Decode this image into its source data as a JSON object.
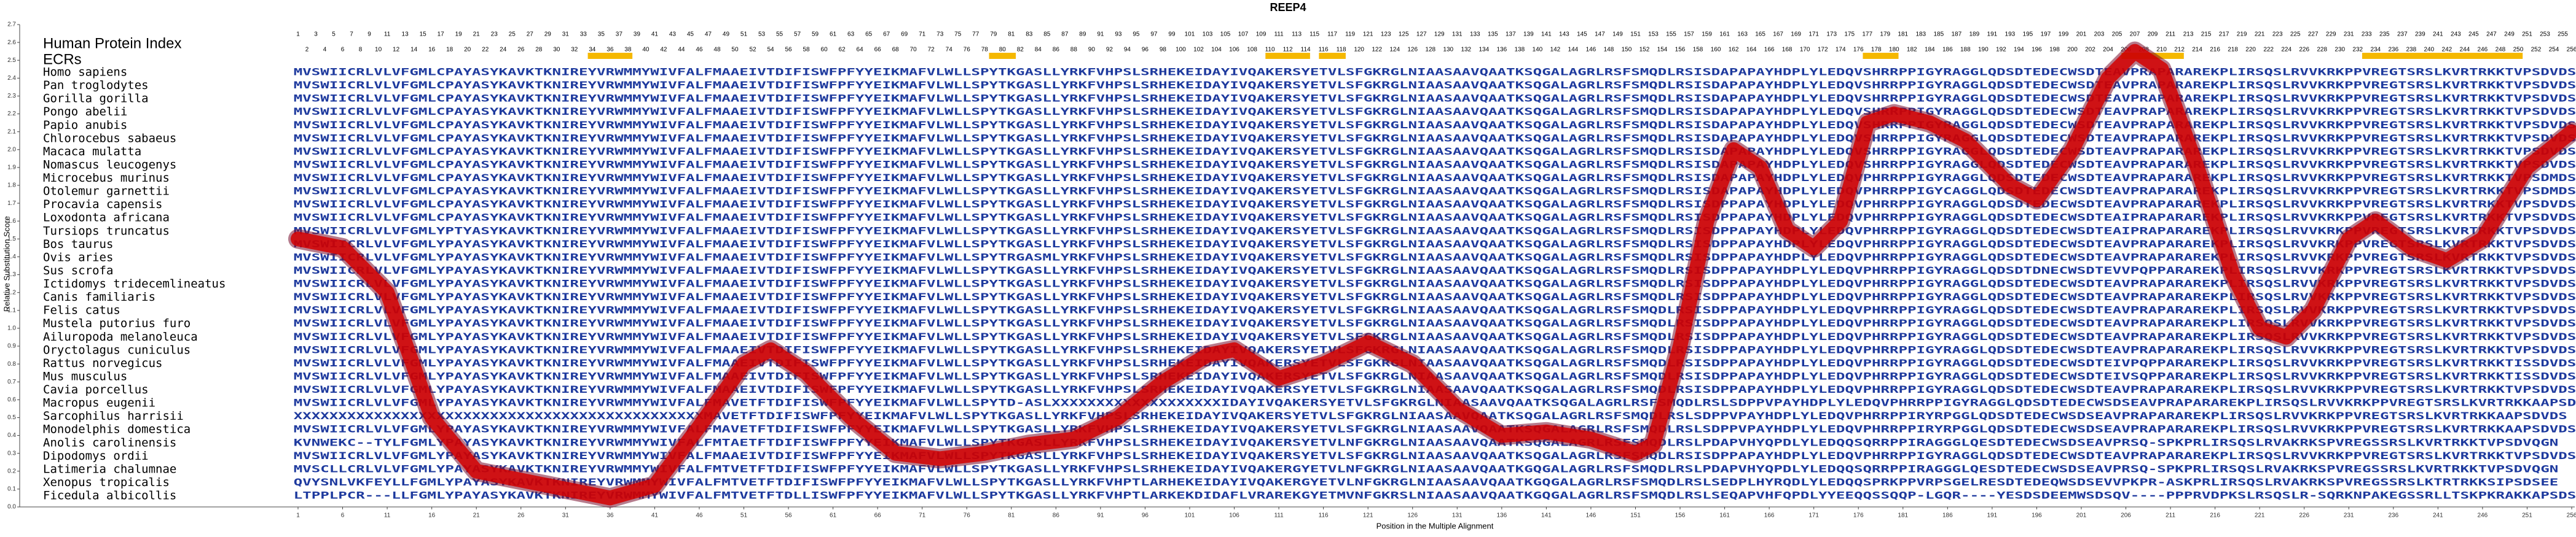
{
  "chart_data": {
    "type": "line",
    "title": "REEP4",
    "x_label": "Position in the Multiple Alignment",
    "y_label": "Relative Substitution Score",
    "xlim": [
      1,
      256
    ],
    "ylim": [
      0,
      2.7
    ],
    "xticks": [
      1,
      6,
      11,
      16,
      21,
      26,
      31,
      36,
      41,
      46,
      51,
      56,
      61,
      66,
      71,
      76,
      81,
      86,
      91,
      96,
      101,
      106,
      111,
      116,
      121,
      126,
      131,
      136,
      141,
      146,
      151,
      156,
      161,
      166,
      171,
      176,
      181,
      186,
      191,
      196,
      201,
      206,
      211,
      216,
      221,
      226,
      231,
      236,
      241,
      246,
      251,
      256
    ],
    "yticks": [
      {
        "value": 0,
        "label": "0.0"
      },
      {
        "value": 0.1,
        "label": "0.1"
      },
      {
        "value": 0.2,
        "label": "0.2"
      },
      {
        "value": 0.3,
        "label": "0.3"
      },
      {
        "value": 0.4,
        "label": "0.4"
      },
      {
        "value": 0.5,
        "label": "0.5"
      },
      {
        "value": 0.6,
        "label": "0.6"
      },
      {
        "value": 0.7,
        "label": "0.7"
      },
      {
        "value": 0.8,
        "label": "0.8"
      },
      {
        "value": 0.9,
        "label": "0.9"
      },
      {
        "value": 1,
        "label": "1.0"
      },
      {
        "value": 1.1,
        "label": "1.1"
      },
      {
        "value": 1.2,
        "label": "1.2"
      },
      {
        "value": 1.3,
        "label": "1.3"
      },
      {
        "value": 1.4,
        "label": "1.4"
      },
      {
        "value": 1.5,
        "label": "1.5"
      },
      {
        "value": 1.6,
        "label": "1.6"
      },
      {
        "value": 1.7,
        "label": "1.7"
      },
      {
        "value": 1.8,
        "label": "1.8"
      },
      {
        "value": 1.9,
        "label": "1.9"
      },
      {
        "value": 2,
        "label": "2.0"
      },
      {
        "value": 2.1,
        "label": "2.1"
      },
      {
        "value": 2.2,
        "label": "2.2"
      },
      {
        "value": 2.3,
        "label": "2.3"
      },
      {
        "value": 2.4,
        "label": "2.4"
      },
      {
        "value": 2.5,
        "label": "2.5"
      },
      {
        "value": 2.6,
        "label": "2.6"
      },
      {
        "value": 2.7,
        "label": "2.7"
      }
    ],
    "color": "#d40000",
    "x": [
      1,
      6,
      11,
      16,
      21,
      26,
      31,
      36,
      41,
      46,
      51,
      54,
      58,
      63,
      68,
      73,
      78,
      83,
      88,
      93,
      98,
      103,
      106,
      111,
      116,
      121,
      126,
      131,
      136,
      141,
      146,
      151,
      153,
      156,
      159,
      162,
      165,
      168,
      171,
      174,
      177,
      180,
      184,
      188,
      193,
      196,
      200,
      204,
      207,
      210,
      214,
      218,
      221,
      224,
      227,
      231,
      234,
      238,
      242,
      246,
      251,
      256
    ],
    "values": [
      1.5,
      1.45,
      1.2,
      0.5,
      0.2,
      0.15,
      0.1,
      0.05,
      0.12,
      0.45,
      0.8,
      0.88,
      0.75,
      0.5,
      0.3,
      0.27,
      0.3,
      0.35,
      0.38,
      0.5,
      0.7,
      0.85,
      0.88,
      0.72,
      0.8,
      0.92,
      0.8,
      0.55,
      0.4,
      0.42,
      0.38,
      0.3,
      0.35,
      0.9,
      1.6,
      2.0,
      1.9,
      1.55,
      1.45,
      1.6,
      2.15,
      2.2,
      2.15,
      2.05,
      1.8,
      1.72,
      2.0,
      2.4,
      2.55,
      2.45,
      1.9,
      1.3,
      1.0,
      0.95,
      1.1,
      1.5,
      1.6,
      1.45,
      1.38,
      1.5,
      1.9,
      2.1
    ]
  },
  "alignment": {
    "index_label": "Human Protein Index",
    "ecr_label": "ECRs",
    "positions": [
      1,
      2,
      3,
      4,
      5,
      6,
      7,
      8,
      9,
      10,
      11,
      12,
      13,
      14,
      15,
      16,
      17,
      18,
      19,
      20,
      21,
      22,
      23,
      24,
      25,
      26,
      27,
      28,
      29,
      30,
      31,
      32,
      33,
      34,
      35,
      36,
      37,
      38,
      39,
      40,
      41,
      42,
      43,
      44,
      45,
      46,
      47,
      48,
      49,
      50,
      51,
      52,
      53,
      54,
      55,
      56,
      57,
      58,
      59,
      60,
      61,
      62,
      63,
      64,
      65,
      66,
      67,
      68,
      69,
      70,
      71,
      72,
      73,
      74,
      75,
      76,
      77,
      78,
      79,
      80,
      81,
      82,
      83,
      84,
      85,
      86,
      87,
      88,
      89,
      90,
      91,
      92,
      93,
      94,
      95,
      96,
      97,
      98,
      99,
      100,
      101,
      102,
      103,
      104,
      105,
      106,
      107,
      108,
      109,
      110,
      111,
      112,
      113,
      114,
      115,
      116,
      117,
      118,
      119,
      120,
      121,
      122,
      123,
      124,
      125,
      126,
      127,
      128,
      129,
      130,
      131,
      132,
      133,
      134,
      135,
      136,
      137,
      138,
      139,
      140,
      141,
      142,
      143,
      144,
      145,
      146,
      147,
      148,
      149,
      150,
      151,
      152,
      153,
      154,
      155,
      156,
      157,
      158,
      159,
      160,
      161,
      162,
      163,
      164,
      165,
      166,
      167,
      168,
      169,
      170,
      171,
      172,
      173,
      174,
      175,
      176,
      177,
      178,
      179,
      180,
      181,
      182,
      183,
      184,
      185,
      186,
      187,
      188,
      189,
      190,
      191,
      192,
      193,
      194,
      195,
      196,
      197,
      198,
      199,
      200,
      201,
      202,
      203,
      204,
      205,
      206,
      207,
      208,
      209,
      210,
      211,
      212,
      213,
      214,
      215,
      216,
      217,
      218,
      219,
      220,
      221,
      222,
      223,
      224,
      225,
      226,
      227,
      228,
      229,
      230,
      231,
      232,
      233,
      234,
      235,
      236,
      237,
      238,
      239,
      240,
      241,
      242,
      243,
      244,
      245,
      246,
      247,
      248,
      249,
      250,
      251,
      252,
      253,
      254,
      255,
      256
    ],
    "ecr_ranges": [
      [
        34,
        38
      ],
      [
        79,
        81
      ],
      [
        110,
        114
      ],
      [
        116,
        118
      ],
      [
        177,
        180
      ],
      [
        206,
        212
      ],
      [
        233,
        250
      ]
    ],
    "species": [
      {
        "name": "Homo sapiens",
        "sequence": "MVSWIICRLVLVFGMLCPAYASYKAVKTKNIREYVRWMMYWIVFALFMAAEIVTDIFISWFPFYYEIKMAFVLWLLSPYTKGASLLYRKFVHPSLSRHEKEIDAYIVQAKERSYETVLSFGKRGLNIAASAAVQAATKSQGALAGRLRSFSMQDLRSISDAPAPAYHDPLYLEDQVSHRRPPIGYRAGGLQDSDTEDECWSDTEAVPRAPARAREKPLIRSQSLRVVKRKPPVREGTSRSLKVRTRKKTVPSDVDS"
      },
      {
        "name": "Pan troglodytes",
        "sequence": "MVSWIICRLVLVFGMLCPAYASYKAVKTKNIREYVRWMMYWIVFALFMAAEIVTDIFISWFPFYYEIKMAFVLWLLSPYTKGASLLYRKFVHPSLSRHEKEIDAYIVQAKERSYETVLSFGKRGLNIAASAAVQAATKSQGALAGRLRSFSMQDLRSISDAPAPAYHDPLYLEDQVSHRRPPIGYRAGGLQDSDTEDECWSDTEAVPRAPARAREKPLIRSQSLRVVKRKPPVREGTSRSLKVRTRKKTVPSDVDS"
      },
      {
        "name": "Gorilla gorilla",
        "sequence": "MVSWIICRLVLVFGMLCPAYASYKAVKTKNIREYVRWMMYWIVFALFMAAEIVTDIFISWFPFYYEIKMAFVLWLLSPYTKGASLLYRKFVHPSLSRHEKEIDAYIVQAKERSYETVLSFGKRGLNIAASAAVQAATKSQGALAGRLRSFSMQDLRSISDAPAPAYHDPLYLEDQVSHRRPPIGYRAGGLQDSDTEDECWSDTEAVPRAPARAREKPLIRSQSLRVVKRKPPVREGTSRSLKVRTRKKTVPSDVDS"
      },
      {
        "name": "Pongo abelii",
        "sequence": "MVSWIICRLVLVFGMLCPAYASYKAVKTKNIREYVRWMMYWIVFALFMAAEIVTDIFISWFPFYYEIKMAFVLWLLSPYTKGASLLYRKFVHPSLSRHEKEIDAYIVQAKERSYETVLSFGKRGLNIAASAAVQAATKSQGALAGRLRSFSMQDLRSISDAPAPAYHDPLYLEDQVSHRRPPIGYRAGGLQDSDTEDECWSDTEAVPRAPARAREKPLIRSQSLRVVKRKPPVREGTSRSLKVRTRKKTVPSDVDS"
      },
      {
        "name": "Papio anubis",
        "sequence": "MVSWIICRLVLVFGMLCPAYASYKAVKTKNIREYVRWMMYWIVFALFMAAEIVTDIFISWFPFYYEIKMAFVLWLLSPYTKGASLLYRKFVHPSLSRHEKEIDAYIVQAKERSYETVLSFGKRGLNIAASAAVQAATKSQGALAGRLRSFSMQDLRSISDAPAPAYHDPLYLEDQVSHRRPPIGYRAGGLQDSDTEDECWSDTEAVPRAPARAREKPLIRSQSLRVVKRKPPVREGTSRSLKVRTRKKTVPSDVDS"
      },
      {
        "name": "Chlorocebus sabaeus",
        "sequence": "MVSWIICRLVLVFGMLCPAYASYKAVKTKNIREYVRWMMYWIVFALFMAAEIVTDIFISWFPFYYEIKMAFVLWLLSPYTKGASLLYRKFVHPSLSRHEKEIDAYIVQAKERSYETVLSFGKRGLNIAASAAVQAATKSQGALAGRLRSFSMQDLRSISDAPAPAYHDPLYLEDQVSHRRPPIGYRAGGLQDSDTEDECWSDTEAVPRAPARAREKPLIRSQSLRVVKRKPPVREGTSRSLKVRTRKKTVPSDVDS"
      },
      {
        "name": "Macaca mulatta",
        "sequence": "MVSWIICRLVLVFGMLCPAYASYKAVKTKNIREYVRWMMYWIVFALFMAAEIVTDIFISWFPFYYEIKMAFVLWLLSPYTKGASLLYRKFVHPSLSRHEKEIDAYIVQAKERSYETVLSFGKRGLNIAASAAVQAATKSQGALAGRLRSFSMQDLRSISDAPAPAYHDPLYLEDQVSHRRPPIGYRAGGLQDSDTEDECWSDTEAVPRAPARAREKPLIRSQSLRVVKRKPPVREGTSRSLKVRTRKKTVPSDVDS"
      },
      {
        "name": "Nomascus leucogenys",
        "sequence": "MVSWIICRLVLVFGMLCPAYASYKAVKTKNIREYVRWMMYWIVFALFMAAEIVTDIFISWFPFYYEIKMAFVLWLLSPYTKGASLLYRKFVHPSLSRHEKEIDAYIVQAKERSYETVLSFGKRGLNIAASAAVQAATKSQGALAGRLRSFSMQDLRSISDAPAPAYHDPLYLEDQVSHRRPPIGYRAGGLQDSDTEDECWSDTEAVPRAPARAREKPLIRSQSLRVVKRKPPVREGTSRSLKVRTRKKTVPSDVDS"
      },
      {
        "name": "Microcebus murinus",
        "sequence": "MVSWIICRLVLVFGMLCPAYASYKAVKTKNIREYVRWMMYWIVFALFMAAEIVTDIFISWFPFYYEIKMAFVLWLLSPYTKGASLLYRKFVHPSLSRHEKEIDAYIVQAKERSYETVLSFGKRGLNIAASAAVQAATKSQGALAGRLRSFSMQDLRSISDAPAPAYHDPLYLEDQVPHRRPPIGYRAGGLQDSDTEDECWSDTEAVPRAPARAREKPLIRSQSLRVVKRKPPVREGTSRSLKVRTRKKTVPSDMDS"
      },
      {
        "name": "Otolemur garnettii",
        "sequence": "MVSWIICRLVLVFGMLCPAYASYKAVKTKNIREYVRWMMYWIVFALFMAAEIVTDIFISWFPFYYEIKMAFVLWLLSPYTKGASLLYRKFVHPSLSRHEKEIDAYIVQAKERSYETVLSFGKRGLNIAASAAVQAATKSQGALAGRLRSFSMQDLRSISDAPAPAYHDPLYLEDQVPHRRPPIGYCAGGLQDSDTEDECWSDTEAVPRAPARAREKPLIRSQSLRVVKRKPPVREGTSRSLKVRTRKKTVPSDMDS"
      },
      {
        "name": "Procavia capensis",
        "sequence": "MVSWIICRLVLVFGMLCPAYASYKAVKTKNIREYVRWMMYWIVFALFMAAEIVTDIFISWFPFYYEIKMAFVLWLLSPYTKGASLLYRKFVHPSLSRHEKEIDAYIVQAKERSYETVLSFGKRGLNIAASAAVQAATKSQGALAGRLRSFSMQDLRSISDPPAPAYHDPLYLEDQVPHRRPPIGYRAGGLQDSDTEDECWSDTEAVPRAPARAREKPLIRSQSLRVVKRKPPVREGTSRSLKVRTRKKTVPSDVDS"
      },
      {
        "name": "Loxodonta africana",
        "sequence": "MVSWIICRLVLVFGMLCPAYASYKAVKTKNIREYVRWMMYWIVFALFMAAEIVTDIFISWFPFYYEIKMAFVLWLLSPYTKGASLLYRKFVHPSLSRHEKEIDAYIVQAKERSYETVLSFGKRGLNIAASAAVQAATKSQGALAGRLRSFSMQDLRSISDPPAPAYHDPLYLEDQVPHRRPPIGYRAGGLQDSDTEDECWSDTEAIPRAPARAREKPLIRSQSLRVVKRKPPVREGTSRSLKVRTRKKTVPSDVDS"
      },
      {
        "name": "Tursiops truncatus",
        "sequence": "MVSWIICRLVLVFGMLYPTYASYKAVKTKNIREYVRWMMYWIVFALFMAAEIVTDIFISWFPFYYEIKMAFVLWLLSPYTKGASLLYRKFVHPSLSRHEKEIDAYIVQAKERSYETVLSFGKRGLNIAASAAVQAATKSQGALAGRLRSFSMQDLRSISDPPAPAYHDPLYLEDQVPHRRPPIGYRAGGLQDSDTEDECWSDTEAIPRAPARAREKPLIRSQSLRVVKRKPPVREGTSRSLKVRTRKKTVPSDVDS"
      },
      {
        "name": "Bos taurus",
        "sequence": "MVSWIICRLVLVFGMLYPAYASYKAVKTKNIREYVRWMMYWIVFALFMAAEIVTDIFISWFPFYYEIKMAFVLWLLSPYTKGASLLYRKFVHPSLSRHEKEIDAYIVQAKERSYETVLSFGKRGLNIAASAAVQAATKSQGALAGRLRSFSMQDLRSISDPPAPAYHDPLYLEDQVPHRRPPIGYRAGGLQDSDTEDECWSDTEAVPRAPARAREKPLIRSQSLRVVKRKPPVREGTSRSLKVRTRKKTVPSDVDS"
      },
      {
        "name": "Ovis aries",
        "sequence": "MVSWIICRLVLVFGMLYPAYASYKAVKTKNIREYVRWMMYWIVFALFMAAEIVTDIFISWFPFYYEIKMAFVLWLLSPYTRGASMLYRKFVHPSLSRHEKEIDAYIVQAKERSYETVLSFGKRGLNIAASAAVQAATKSQGALAGRLRSFSMQDLRSISDPPAPAYHDPLYLEDQVPHRRPPIGYRAGGLQDSDTEDECWSDTEAVPRAPARAREKPLIRSQSLRVVKRKPPVREGTSRSLKVRTRKKTVPSDVDS"
      },
      {
        "name": "Sus scrofa",
        "sequence": "MVSWIICRLVLVFGMLYPAYASYKAVKTKNIREYVRWMMYWIVFALFMAAEIVTDIFISWFPFYYEIKMAFVLWLLSPYTKGASLLYRKFVHPSLSRHEKEIDAYIVQAKERSYETVLSFGKRGLNIAASAAVQAATKSQGALAGRLRSFSMQDLRSISDPPAPAYHDPLYLEDQVPHRRPPIGYRAGGLQDSDTDNECWSDTEVVPQPPARAREKPLIRSQSLRVVKRKPPVREGTSRSLKVRTRKKTVPSDVDS"
      },
      {
        "name": "Ictidomys tridecemlineatus",
        "sequence": "MVSWIICRLVLVFGMLYPAYASYKAVKTKNIREYVRWMMYWIVFALFMAAEIVTDIFISWFPFYYEIKMAFVLWLLSPYTKGASLLYRKFVHPSLSRHEKEIDAYIVQAKERSYETVLSFGKRGLNIAASAAVQAATKSQGALAGRLRSFSMQDLRSISDPPAPAYHDPLYLEDQVPHRRPPIGYRAGGLQDSDTEDECWSDTEAVPRAPARAREKPLIRSQSLRVVKRKPPVREGTSRSLKVRTRKKTVPSDVDS"
      },
      {
        "name": "Canis familiaris",
        "sequence": "MVSWIICRLVLVFGMLYPAYASYKAVKTKNIREYVRWMMYWIVFALFMAAEIVTDIFISWFPFYYEIKMAFVLWLLSPYTKGASLLYRKFVHPSLSRHEKEIDAYIVQAKERSYETVLSFGKRGLNIAASAAVQAATKSQGALAGRLRSFSMQDLRSISDPPAPAYHDPLYLEDQVPHRRPPIGYRAGGLQDSDTEDECWSDTEAVPRAPARAREKPLIRSQSLRVVKRKPPVREGTSRSLKVRTRKKTVPSDVDS"
      },
      {
        "name": "Felis catus",
        "sequence": "MVSWIICRLVLVFGMLYPAYASYKAVKTKNIREYVRWMMYWIVFALFMAAEIVTDIFISWFPFYYEIKMAFVLWLLSPYTKGASLLYRKFVHPSLSRHEKEIDAYIVQAKERSYETVLSFGKRGLNIAASAAVQAATKSQGALAGRLRSFSMQDLRSISDPPAPAYHDPLYLEDQVPHRRPPIGYRAGGLQDSDTEDECWSDTEAVPRAPARAREKPLIRSQSLRVVKRKPPVREGTSRSLKVRTRKKTVPSDVDS"
      },
      {
        "name": "Mustela putorius furo",
        "sequence": "MVSWIICRLVLVFGMLYPAYASYKAVKTKNIREYVRWMMYWIVFALFMAAEIVTDIFISWFPFYYEIKMAFVLWLLSPYTKGASLLYRKFVHPSLSRHEKEIDAYIVQAKERSYETVLSFGKRGLNIAASAAVQAATKSQGALAGRLRSFSMQDLRSISDPPAPAYHDPLYLEDQVPHRRPPIGYRAGGLQDSDTEDECWSDTEAVPRAPARAREKPLIRSQSLRVVKRKPPVREGTSRSLKVRTRKKTVPSDVDS"
      },
      {
        "name": "Ailuropoda melanoleuca",
        "sequence": "MVSWIICRLVLVFGMLYPAYASYKAVKTKNIREYVRWMMYWIVFALFMAAEIVTDIFISWFPFYYEIKMAFVLWLLSPYTKGASLLYRKFVHPSLSRHEKEIDAYIVQAKERSYETVLSFGKRGLNIAASAAVQAATKSQGALAGRLRSFSMQDLRSISDPPAPAYHDPLYLEDQVPHRRPPIGYRAGGLQDSDTEDECWSDTEAVPRAPARAREKPLIRSQSLRVVKRKPPVREGTSRSLKVRTRKKTVPSDVDS"
      },
      {
        "name": "Oryctolagus cuniculus",
        "sequence": "MVSWIICRLVLVFGMLYPAYASYKAVKTKNIREYVRWMMYWIVFALFMAAEIVTDIFISWFPFYYEIKMAFVLWLLSPYTKGASLLYRKFVHPSLSRHEKEIDAYIVQAKERSYETVLSFGKRGLNIAASAAVQAATKSQGALAGRLRSFSMQDLRSISDPPAPAYHDPLYLEDQVPHRRPPIGYRAGGLQDSDTEDECWSDTEAVPRAPARAREKPLIRSQSLRVVKRKPPVREGTSRSLKVRTRKKTVPSDVDS"
      },
      {
        "name": "Rattus norvegicus",
        "sequence": "MVSWIICRLVLVFGMLYPAYASYKAVKTKNIREYVRWMMYWIVFALFMAAEIVTDIFISWFPFYYEIKMAFVLWLLSPYTKGASLLYRKFVHPSLSRHEKEIDAYIVQAKERSYETVLSFGKRGLNIAASAAVQAATKSQGALAGRLRSFSMQDLRSISDPPAPAYHDPLYLEDQVPHRRPPIGYRAGGLQDSDTEDECWSDTEIVPQPPARAREKPLIRSQSLRVVKRKPPVREGTSRSLKVRTRKKTISSDVDS"
      },
      {
        "name": "Mus musculus",
        "sequence": "MVSWIICRLVLVFGMLYPAYASYKAVKTKNIREYVRWMMYWIVFALFMAAEIVTDIFISWFPFYYEIKMAFVLWLLSPYTKGASLLYRKFVHPSLSRHEKEIDAYIVQAKERSYETVLSFGKRGLNIAASAAVQAATKSQGALAGRLRSFSMQDLRSISDPPAPAYHDPLYLEDQVPHRRPPIGYRAGGLQDSDTEDECWSDTEIVSQPPARAREKPLIRSQSLRVVKRKPPVREGTSRSLKVRTRKKTISSDVDS"
      },
      {
        "name": "Cavia porcellus",
        "sequence": "MVSWIICRLVLVFGMLYPAYASYKAVKTKNIREYVRWMMYWIVFALFMAAEIVTDIFISWFPFYYEIKMAFVLWLLSPYTKGASLLYRKFVHPSLSRHEKEIDAYIVQAKERSYETVLSFGKRGLNIAASAAVQAATKSQGALAGRLRSFSMQDLRSISDPPAPAYHDPLYLEDQVPHRRPPIGYRAGGLQDSDTEDECWSDTEAVPRAPARAREKPLIRSQSLRVVKRKPPVREGTSRSLKVRTRKKTVPSDVDS"
      },
      {
        "name": "Macropus eugenii",
        "sequence": "MVSWIICRLVLVFGMLYPAYASYKAVKTKNIREYVRWMMYWIVFALFMAVETFTDIFISWFPFYYEIKMAFVLWLLSPYTD-ASLXXXXXXXXXXXXXXXXXXXIDAYIVQAKERSYETVLSFGKRGLNIAASAAVQAATKSQGALAGRLRSFSMQDLRSLSDPPVPAYHDPLYLEDQVPHRRPPIGYRAGGLQDSDTEDECWSDSEAVPRAPARAREKPLIRSQSLRVVKRKPPVREGTSRSLKVRTRKKAAPSDVDS"
      },
      {
        "name": "Sarcophilus harrisii",
        "sequence": "XXXXXXXXXXXXXXXXXXXXXXXXXXXXXXXXXXXXXXXXXXXXXXMAVETFTDIFISWFPFYYEIKMAFVLWLLSPYTKGASLLYRKFVHPSLSRHEKEIDAYIVQAKERSYETVLSFGKRGLNIAASAAVQAATKSQGALAGRLRSFSMQDLRSLSDPPVPAYHDPLYLEDQVPHRRPPIRYRPGGLQDSDTEDECWSDSEAVPRAPARAREKPLIRSQSLRVVKRKPPVREGTSRSLKVRTRKKAAPSDVDS"
      },
      {
        "name": "Monodelphis domestica",
        "sequence": "MVSWIICRLVLVFGMLYPAYASYKAVKTKNIREYVRWMMYWIVFALFMAVETFTDIFISWFPFYYEIKMAFVLWLLSPYTKGASLLYRKFVHPSLSRHEKEIDAYIVQAKERSYETVLSFGKRGLNIAASAAVQAATKSQGALAGRLRSFSMQDLRSLSDPPVPAYHDPLYLEDQVPHRRPPIRYRPGGLQDSDTEDECWSDSEAVPRAPARAREKPLIRSQSLRVVKRKPPVREGTSRSLKVRTRKKAAPSDVDS"
      },
      {
        "name": "Anolis carolinensis",
        "sequence": "KVNWEKC--TYLFGMLYPAYASYKAVKTKNIREYVRWMMYWIVFALFMTAETFTDIFISWFPFYYEIKMAFVLWLLSPYTKGASLLYRKFVHPSLSRHEKEIDAYIVQAKERSYETVLNFGKRGLNIAASAAVQAATKSQGALAGRLRSFSMQDLRSLPDAPVHYQPDLYLEDQQSQRRPPIRAGGGLQESDTEDECWSDSEAVPRSQ-SPKPRLIRSQSLRVAKRKSPVREGSSRSLKVRTRKKTVPSDVQGN"
      },
      {
        "name": "Dipodomys ordii",
        "sequence": "MVSWIICRLVLVFGMLYPAYASYKAVKTKNIREYVRWMMYWIVFALFMAAEIVTDIFISWFPFYYEIKMAFVLWLLSPYTKGASLLYRKFVHPSLSRHEKEIDAYIVQAKERSYETVLSFGKRGLNIAASAAVQAATKSQGALAGRLRSFSMQDLRSISDPPAPAYHDPLYLEDQVPHRRPPIGYRAGGLQDSDTEDECWSDTEAVPRAPARAREKPLIRSQSLRVVKRKPPVREGTSRSLKVRTRKKTVPSDVDS"
      },
      {
        "name": "Latimeria chalumnae",
        "sequence": "MVSCLLCRLVLVFGMLYPAYASYKAVKTKNIREYVRWMMYWIVFALFMTVETFTDIFISWFPFYYEIKMAFVLWLLSPYTKGASLLYRKFVHPSLSRHEKEIDAYIVQAKERGYETVLNFGKRGLNIAASAAVQAATKGQGALAGRLRSFSMQDLRSLPDAPVHYQPDLYLEDQQSQRRPPIRAGGGLQESDTEDECWSDSEAVPRSQ-SPKPRLIRSQSLRVAKRKSPVREGSSRSLKVRTRKKTVPSDVQGN"
      },
      {
        "name": "Xenopus tropicalis",
        "sequence": "QVYSNLVKFEYLLFGMLYPAYASYKAVKTKNIREYVRWMMYWIVFALFMTVETFTDIFISWFPFYYEIKMAFVLWLLSPYTKGASLLYRKFVHPTLARHEKEIDAYIVQAKERGYETVLNFGKRGLNIAASAAVQAATKGQGALAGRLRSFSMQDLRSLSEDPLHYRQDLYLEDQQSPRKPPVRPSGELRESDTEDEQWSDSEVVPKPR-ASKPRLIRSQSLRVAKRKSPVREGSSRSLKTRTRKKSIPSDSEE"
      },
      {
        "name": "Ficedula albicollis",
        "sequence": "LTPPLPCR---LLFGMLYPAYASYKAVKTKNIREYVRWMMYWIVFALFMTVETFTDLLISWFPFYYEIKMAFVLWLLSPYTKGASLLYRKFVHPTLARKEKDIDAFLVRAREKGYETMVNFGKRSLNIAASAAVQAATKGQGALAGRLRSFSMQDLRSLSEQAPVHFQPDLYYEEQQSSQQP-LGQR----YESDSDEEMWSDSQV----PPPRVDPKSLRSQSLR-SQRKNPAKEGSSRLLTSKPKRAKKAPSDSEE"
      }
    ]
  }
}
